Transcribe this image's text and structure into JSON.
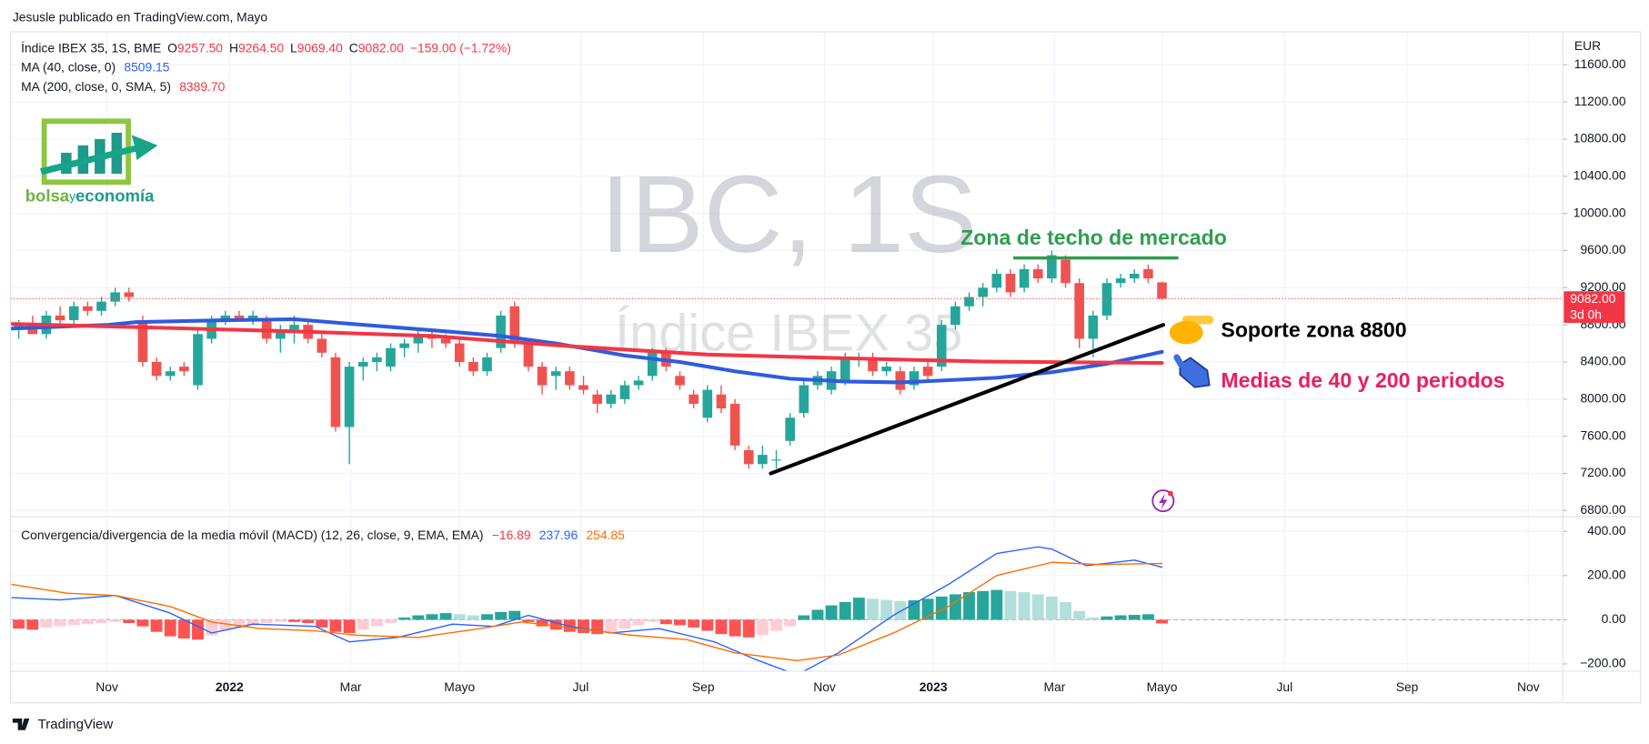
{
  "header": {
    "title": "Jesusle publicado en TradingView.com, Mayo"
  },
  "legend": {
    "symbol": "Índice IBEX 35, 1S, BME",
    "ohlc": [
      {
        "key": "O",
        "value": "9257.50"
      },
      {
        "key": "H",
        "value": "9264.50"
      },
      {
        "key": "L",
        "value": "9069.40"
      },
      {
        "key": "C",
        "value": "9082.00"
      }
    ],
    "change": "−159.00 (−1.72%)",
    "ma40": {
      "label": "MA (40, close, 0)",
      "value": "8509.15"
    },
    "ma200": {
      "label": "MA (200, close, 0, SMA, 5)",
      "value": "8389.70"
    },
    "macd": {
      "label": "Convergencia/divergencia de la media móvil (MACD) (12, 26, close, 9, EMA, EMA)",
      "values": [
        "−16.89",
        "237.96",
        "254.85"
      ]
    }
  },
  "watermark": {
    "symbol": "IBC, 1S",
    "name": "Índice IBEX 35"
  },
  "logo": {
    "parts": [
      "bolsa",
      "y",
      "economía"
    ]
  },
  "footer": {
    "brand": "TradingView"
  },
  "chart_data": [
    {
      "type": "candlestick",
      "currency": "EUR",
      "xlim": [
        -0.6,
        112.1
      ],
      "xticks": [
        {
          "value": 6.4,
          "label": "Nov"
        },
        {
          "value": 15.3,
          "label": "2022"
        },
        {
          "value": 24.1,
          "label": "Mar"
        },
        {
          "value": 32,
          "label": "Mayo"
        },
        {
          "value": 40.8,
          "label": "Jul"
        },
        {
          "value": 49.7,
          "label": "Sep"
        },
        {
          "value": 58.5,
          "label": "Nov"
        },
        {
          "value": 66.4,
          "label": "2023"
        },
        {
          "value": 75.2,
          "label": "Mar"
        },
        {
          "value": 83,
          "label": "Mayo"
        },
        {
          "value": 91.9,
          "label": "Jul"
        },
        {
          "value": 100.8,
          "label": "Sep"
        },
        {
          "value": 109.6,
          "label": "Nov"
        }
      ],
      "ylim": [
        6735,
        11956
      ],
      "yticks": [
        {
          "value": 6800,
          "label": "6800.00"
        },
        {
          "value": 7200,
          "label": "7200.00"
        },
        {
          "value": 7600,
          "label": "7600.00"
        },
        {
          "value": 8000,
          "label": "8000.00"
        },
        {
          "value": 8400,
          "label": "8400.00"
        },
        {
          "value": 8800,
          "label": "8800.00"
        },
        {
          "value": 9200,
          "label": "9200.00"
        },
        {
          "value": 9600,
          "label": "9600.00"
        },
        {
          "value": 10000,
          "label": "10000.00"
        },
        {
          "value": 10400,
          "label": "10400.00"
        },
        {
          "value": 10800,
          "label": "10800.00"
        },
        {
          "value": 11200,
          "label": "11200.00"
        },
        {
          "value": 11600,
          "label": "11600.00"
        }
      ],
      "grid": true,
      "color_up": "#26a69a",
      "color_down": "#ef5350",
      "ohlc": [
        [
          8750,
          8850,
          8650,
          8800
        ],
        [
          8800,
          8900,
          8700,
          8700
        ],
        [
          8700,
          8950,
          8650,
          8900
        ],
        [
          8900,
          9000,
          8800,
          8850
        ],
        [
          8850,
          9050,
          8800,
          9000
        ],
        [
          9000,
          9050,
          8900,
          8950
        ],
        [
          8950,
          9100,
          8900,
          9050
        ],
        [
          9050,
          9200,
          9000,
          9150
        ],
        [
          9150,
          9200,
          9050,
          9100
        ],
        [
          8850,
          8900,
          8350,
          8400
        ],
        [
          8400,
          8450,
          8200,
          8250
        ],
        [
          8250,
          8350,
          8200,
          8300
        ],
        [
          8350,
          8400,
          8250,
          8300
        ],
        [
          8150,
          8750,
          8100,
          8700
        ],
        [
          8650,
          8900,
          8600,
          8850
        ],
        [
          8850,
          8950,
          8800,
          8900
        ],
        [
          8900,
          8950,
          8850,
          8850
        ],
        [
          8850,
          8950,
          8800,
          8900
        ],
        [
          8850,
          8900,
          8600,
          8650
        ],
        [
          8650,
          8800,
          8500,
          8750
        ],
        [
          8750,
          8900,
          8600,
          8800
        ],
        [
          8800,
          8850,
          8600,
          8650
        ],
        [
          8650,
          8700,
          8450,
          8500
        ],
        [
          8450,
          8500,
          7650,
          7700
        ],
        [
          7700,
          8400,
          7300,
          8350
        ],
        [
          8350,
          8450,
          8200,
          8400
        ],
        [
          8400,
          8500,
          8300,
          8450
        ],
        [
          8350,
          8600,
          8300,
          8550
        ],
        [
          8550,
          8650,
          8450,
          8600
        ],
        [
          8600,
          8750,
          8500,
          8700
        ],
        [
          8700,
          8750,
          8550,
          8650
        ],
        [
          8650,
          8700,
          8550,
          8600
        ],
        [
          8600,
          8650,
          8350,
          8400
        ],
        [
          8400,
          8450,
          8250,
          8300
        ],
        [
          8300,
          8500,
          8250,
          8450
        ],
        [
          8550,
          8950,
          8500,
          8900
        ],
        [
          9000,
          9050,
          8550,
          8600
        ],
        [
          8600,
          8650,
          8300,
          8350
        ],
        [
          8350,
          8400,
          8050,
          8150
        ],
        [
          8250,
          8350,
          8100,
          8300
        ],
        [
          8300,
          8350,
          8100,
          8150
        ],
        [
          8150,
          8250,
          8050,
          8100
        ],
        [
          8050,
          8100,
          7850,
          7950
        ],
        [
          7950,
          8100,
          7900,
          8050
        ],
        [
          8000,
          8200,
          7950,
          8150
        ],
        [
          8150,
          8250,
          8100,
          8200
        ],
        [
          8250,
          8550,
          8200,
          8500
        ],
        [
          8500,
          8550,
          8300,
          8350
        ],
        [
          8250,
          8300,
          8100,
          8150
        ],
        [
          8050,
          8100,
          7900,
          7950
        ],
        [
          7800,
          8150,
          7750,
          8100
        ],
        [
          8050,
          8150,
          7850,
          7900
        ],
        [
          7950,
          8000,
          7450,
          7500
        ],
        [
          7450,
          7500,
          7250,
          7300
        ],
        [
          7300,
          7500,
          7250,
          7400
        ],
        [
          7350,
          7450,
          7250,
          7350
        ],
        [
          7550,
          7850,
          7500,
          7800
        ],
        [
          7850,
          8200,
          7800,
          8150
        ],
        [
          8150,
          8300,
          8100,
          8250
        ],
        [
          8100,
          8350,
          8050,
          8300
        ],
        [
          8200,
          8500,
          8150,
          8450
        ],
        [
          8450,
          8500,
          8350,
          8450
        ],
        [
          8450,
          8500,
          8250,
          8300
        ],
        [
          8300,
          8400,
          8250,
          8350
        ],
        [
          8300,
          8350,
          8050,
          8100
        ],
        [
          8150,
          8350,
          8100,
          8300
        ],
        [
          8350,
          8400,
          8200,
          8250
        ],
        [
          8350,
          8850,
          8300,
          8800
        ],
        [
          8800,
          9050,
          8750,
          9000
        ],
        [
          9000,
          9150,
          8950,
          9100
        ],
        [
          9100,
          9250,
          9000,
          9200
        ],
        [
          9200,
          9400,
          9150,
          9350
        ],
        [
          9350,
          9400,
          9100,
          9150
        ],
        [
          9200,
          9450,
          9150,
          9400
        ],
        [
          9400,
          9450,
          9250,
          9300
        ],
        [
          9300,
          9600,
          9250,
          9550
        ],
        [
          9500,
          9550,
          9200,
          9250
        ],
        [
          9250,
          9300,
          8550,
          8650
        ],
        [
          8650,
          8950,
          8450,
          8900
        ],
        [
          8900,
          9300,
          8850,
          9250
        ],
        [
          9250,
          9350,
          9200,
          9300
        ],
        [
          9300,
          9400,
          9250,
          9350
        ],
        [
          9400,
          9450,
          9250,
          9300
        ],
        [
          9257.5,
          9264.5,
          9069.4,
          9082
        ]
      ],
      "series": [
        {
          "color": "#2f5be0",
          "x": [
            -0.5,
            6.5,
            8.5,
            15,
            20,
            25,
            31,
            35,
            39,
            44,
            48,
            52,
            56,
            60,
            64,
            67,
            71,
            75,
            79,
            83
          ],
          "values": [
            8760,
            8800,
            8830,
            8850,
            8860,
            8800,
            8730,
            8680,
            8600,
            8470,
            8400,
            8300,
            8220,
            8190,
            8180,
            8200,
            8230,
            8290,
            8380,
            8509.15
          ]
        },
        {
          "color": "#f23645",
          "x": [
            -0.5,
            10,
            20,
            30,
            40,
            50,
            60,
            70,
            83
          ],
          "values": [
            8810,
            8770,
            8730,
            8680,
            8570,
            8480,
            8440,
            8405,
            8389.7
          ]
        }
      ],
      "last_price": {
        "value": 9082,
        "label": "9082.00"
      },
      "countdown": "3d 0h",
      "annotations": {
        "resistance": {
          "label": "Zona de techo de mercado",
          "color": "#2e9e4f",
          "x": [
            72.3,
            84.1
          ],
          "values": [
            9520,
            9520
          ]
        },
        "support": {
          "label": "Soporte zona 8800",
          "color": "#000000",
          "x": [
            54.6,
            83.1
          ],
          "values": [
            7200,
            8800
          ]
        },
        "averages": {
          "label": "Medias de 40 y 200 periodos",
          "color": "#e91e63"
        }
      }
    },
    {
      "type": "macd",
      "ylim": [
        -233,
        467
      ],
      "yticks": [
        {
          "value": -200,
          "label": "−200.00"
        },
        {
          "value": 0,
          "label": "0.00"
        },
        {
          "value": 200,
          "label": "200.00"
        },
        {
          "value": 400,
          "label": "400.00"
        }
      ],
      "histogram": {
        "colors": {
          "up_rising": "#26a69a",
          "up_falling": "#b2dfdb",
          "down_falling": "#ff5252",
          "down_rising": "#ffcdd2"
        },
        "values": [
          -40,
          -45,
          -35,
          -30,
          -25,
          -20,
          -15,
          -10,
          -15,
          -30,
          -55,
          -75,
          -85,
          -90,
          -70,
          -50,
          -35,
          -25,
          -15,
          -10,
          -10,
          -15,
          -35,
          -55,
          -60,
          -45,
          -30,
          -15,
          10,
          20,
          25,
          30,
          25,
          20,
          25,
          35,
          40,
          -10,
          -30,
          -45,
          -55,
          -60,
          -65,
          -55,
          -40,
          -25,
          -10,
          -20,
          -25,
          -35,
          -50,
          -65,
          -75,
          -80,
          -70,
          -50,
          -30,
          20,
          45,
          65,
          80,
          100,
          95,
          90,
          85,
          88,
          95,
          105,
          115,
          125,
          130,
          135,
          130,
          125,
          115,
          105,
          80,
          40,
          10,
          15,
          20,
          22,
          25,
          -16.89
        ]
      },
      "series": [
        {
          "color": "#2962ff",
          "x": [
            -0.5,
            3,
            7,
            11,
            14,
            17,
            21.5,
            24,
            27.5,
            31.5,
            34.5,
            37,
            40,
            43,
            46.5,
            50.5,
            53.5,
            56.5,
            59.5,
            63.5,
            67.5,
            71,
            74,
            75,
            77.5,
            81,
            83
          ],
          "values": [
            100,
            90,
            110,
            30,
            -60,
            -20,
            -30,
            -100,
            -80,
            -20,
            -30,
            20,
            -30,
            -60,
            -40,
            -100,
            -180,
            -250,
            -150,
            20,
            160,
            300,
            330,
            320,
            245,
            270,
            237.96
          ]
        },
        {
          "color": "#ff6d00",
          "x": [
            -0.5,
            3.5,
            7,
            11,
            14,
            17.5,
            21.5,
            24.5,
            29,
            33.5,
            36.5,
            40.5,
            44.5,
            48.5,
            52,
            56.5,
            59.5,
            63.5,
            67.5,
            71,
            75,
            78.5,
            83
          ],
          "values": [
            160,
            120,
            110,
            60,
            -10,
            -40,
            -50,
            -70,
            -80,
            -40,
            -10,
            -40,
            -70,
            -90,
            -150,
            -185,
            -160,
            -60,
            60,
            200,
            260,
            250,
            254.85
          ]
        }
      ]
    }
  ]
}
